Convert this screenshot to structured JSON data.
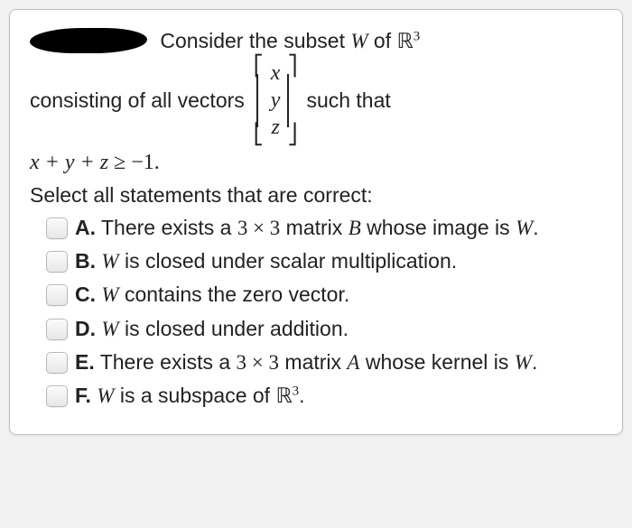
{
  "intro": {
    "part1": "Consider the subset ",
    "W": "W",
    "of": " of ",
    "R": "ℝ",
    "exp": "3"
  },
  "line2": {
    "lead": "consisting of all vectors",
    "vec": {
      "x": "x",
      "y": "y",
      "z": "z"
    },
    "tail": "such that"
  },
  "inequality": {
    "lhs": "x + y + z",
    "op": "≥",
    "rhs": "−1."
  },
  "prompt": "Select all statements that are correct:",
  "options": [
    {
      "letter": "A.",
      "pre": " There exists a ",
      "m1": "3 × 3",
      "mid": " matrix ",
      "mv": "B",
      "post": " whose image is ",
      "tv": "W",
      "end": "."
    },
    {
      "letter": "B.",
      "pre": " ",
      "mv": "W",
      "post": " is closed under scalar multiplication.",
      "end": ""
    },
    {
      "letter": "C.",
      "pre": " ",
      "mv": "W",
      "post": " contains the zero vector.",
      "end": ""
    },
    {
      "letter": "D.",
      "pre": " ",
      "mv": "W",
      "post": " is closed under addition.",
      "end": ""
    },
    {
      "letter": "E.",
      "pre": " There exists a ",
      "m1": "3 × 3",
      "mid": " matrix ",
      "mv": "A",
      "post": " whose kernel is ",
      "tv": "W",
      "end": "."
    },
    {
      "letter": "F.",
      "pre": " ",
      "mv": "W",
      "post": " is a subspace of ",
      "tv": "ℝ",
      "exp": "3",
      "end": "."
    }
  ]
}
